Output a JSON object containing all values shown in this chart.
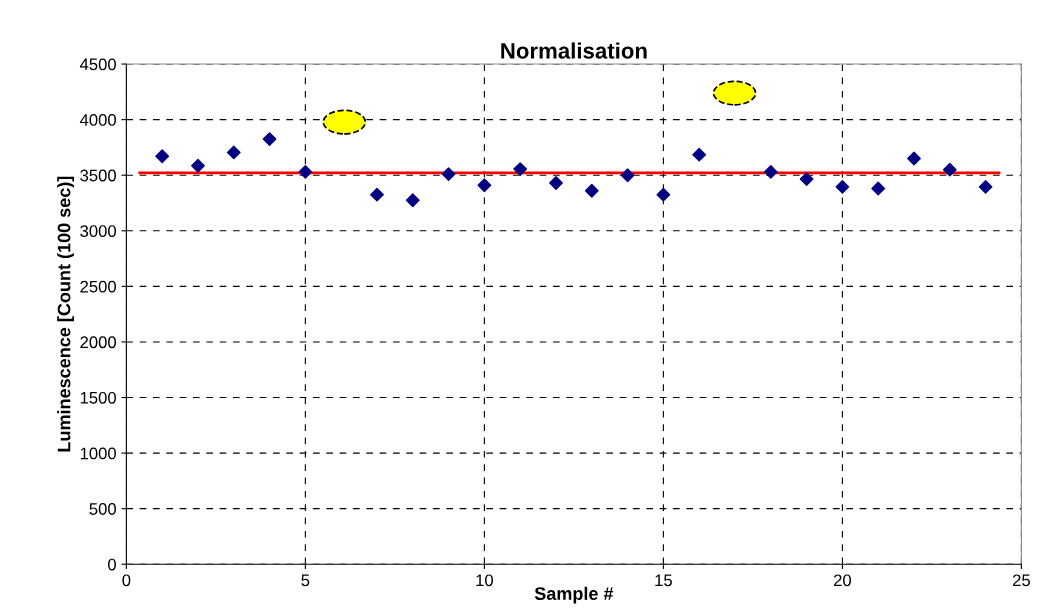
{
  "chart_data": {
    "type": "scatter",
    "title": "Normalisation",
    "xlabel": "Sample #",
    "ylabel": "Luminescence [Count (100 sec)]",
    "x": [
      1,
      2,
      3,
      4,
      5,
      7,
      8,
      9,
      10,
      11,
      12,
      13,
      14,
      15,
      16,
      18,
      19,
      20,
      21,
      22,
      23,
      24
    ],
    "series": [
      {
        "color": "#000080",
        "values": [
          3670,
          3585,
          3705,
          3825,
          3530,
          3325,
          3275,
          3510,
          3410,
          3555,
          3430,
          3360,
          3500,
          3325,
          3685,
          3530,
          3465,
          3395,
          3380,
          3650,
          3550,
          3395
        ]
      }
    ],
    "marker": "diamond",
    "grid": true,
    "legend": false,
    "xlim": [
      0,
      25
    ],
    "xticks": [
      0,
      5,
      10,
      15,
      20,
      25
    ],
    "ylim": [
      0,
      4500
    ],
    "yticks": [
      0,
      500,
      1000,
      1500,
      2000,
      2500,
      3000,
      3500,
      4000,
      4500
    ],
    "ref_lines": [
      {
        "axis": "y",
        "value": 3520,
        "color": "#ff0000"
      }
    ]
  }
}
